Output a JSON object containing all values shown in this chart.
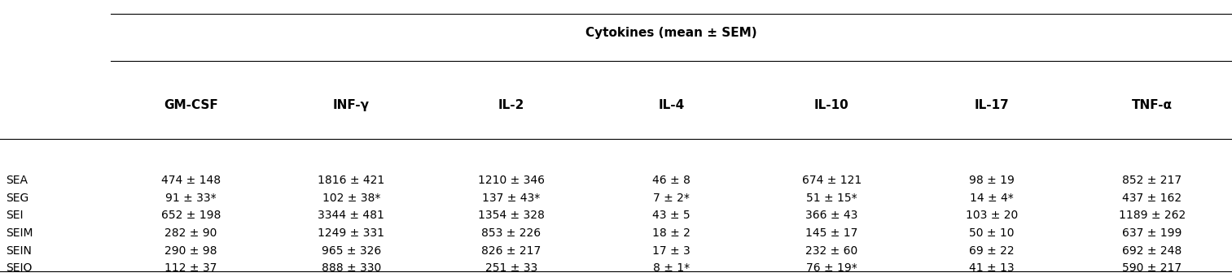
{
  "title": "Cytokines (mean ± SEM)",
  "columns": [
    "GM-CSF",
    "INF-γ",
    "IL-2",
    "IL-4",
    "IL-10",
    "IL-17",
    "TNF-α"
  ],
  "rows": [
    "SEA",
    "SEG",
    "SEI",
    "SEIM",
    "SEIN",
    "SEIO"
  ],
  "cells": [
    [
      "474 ± 148",
      "1816 ± 421",
      "1210 ± 346",
      "46 ± 8",
      "674 ± 121",
      "98 ± 19",
      "852 ± 217"
    ],
    [
      "91 ± 33*",
      "102 ± 38*",
      "137 ± 43*",
      "7 ± 2*",
      "51 ± 15*",
      "14 ± 4*",
      "437 ± 162"
    ],
    [
      "652 ± 198",
      "3344 ± 481",
      "1354 ± 328",
      "43 ± 5",
      "366 ± 43",
      "103 ± 20",
      "1189 ± 262"
    ],
    [
      "282 ± 90",
      "1249 ± 331",
      "853 ± 226",
      "18 ± 2",
      "145 ± 17",
      "50 ± 10",
      "637 ± 199"
    ],
    [
      "290 ± 98",
      "965 ± 326",
      "826 ± 217",
      "17 ± 3",
      "232 ± 60",
      "69 ± 22",
      "692 ± 248"
    ],
    [
      "112 ± 37",
      "888 ± 330",
      "251 ± 33",
      "8 ± 1*",
      "76 ± 19*",
      "41 ± 13",
      "590 ± 217"
    ]
  ],
  "bg_color": "#ffffff",
  "header_fontsize": 11,
  "cell_fontsize": 10,
  "row_label_fontsize": 10,
  "title_fontsize": 11
}
